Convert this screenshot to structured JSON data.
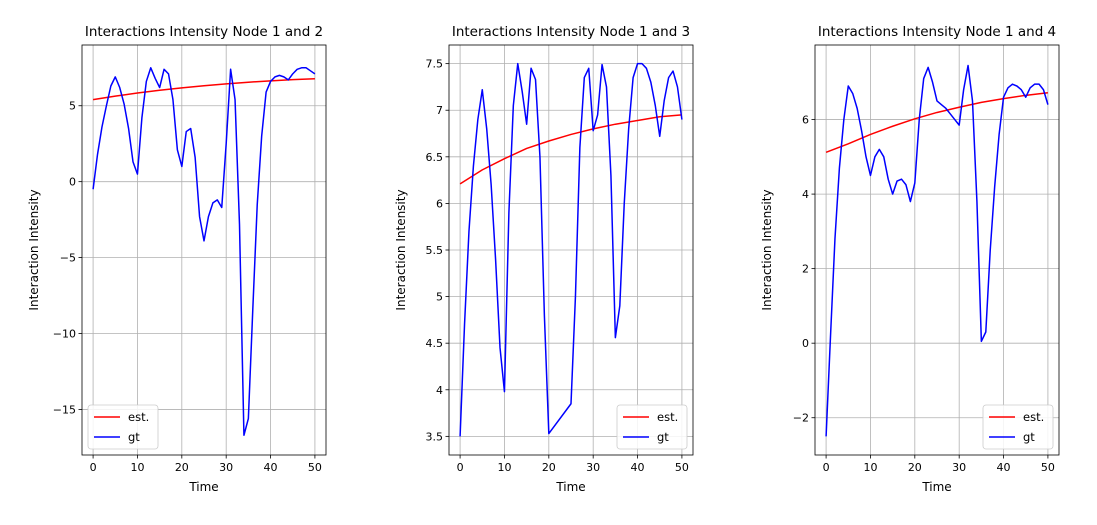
{
  "chart_data": [
    {
      "type": "line",
      "title": "Interactions Intensity Node 1 and 2",
      "xlabel": "Time",
      "ylabel": "Interaction Intensity",
      "xlim": [
        -2.5,
        52.5
      ],
      "ylim": [
        -18,
        9
      ],
      "xticks": [
        0,
        10,
        20,
        30,
        40,
        50
      ],
      "yticks": [
        -15,
        -10,
        -5,
        0,
        5
      ],
      "grid": true,
      "legend": "lower-left",
      "series": [
        {
          "name": "est.",
          "color": "#ff0000",
          "x": [
            0,
            5,
            10,
            15,
            20,
            25,
            30,
            35,
            40,
            45,
            50
          ],
          "y": [
            5.4,
            5.63,
            5.84,
            6.02,
            6.18,
            6.32,
            6.44,
            6.55,
            6.64,
            6.72,
            6.78
          ]
        },
        {
          "name": "gt",
          "color": "#0000ff",
          "x": [
            0,
            1,
            2,
            3,
            4,
            5,
            6,
            7,
            8,
            9,
            10,
            11,
            12,
            13,
            14,
            15,
            16,
            17,
            18,
            19,
            20,
            21,
            22,
            23,
            24,
            25,
            26,
            27,
            28,
            29,
            30,
            31,
            32,
            33,
            34,
            35,
            36,
            37,
            38,
            39,
            40,
            41,
            42,
            43,
            44,
            45,
            46,
            47,
            48,
            49,
            50
          ],
          "y": [
            -0.5,
            1.8,
            3.6,
            5.0,
            6.3,
            6.9,
            6.2,
            5.1,
            3.5,
            1.3,
            0.5,
            4.2,
            6.6,
            7.5,
            6.8,
            6.2,
            7.4,
            7.1,
            5.4,
            2.1,
            1.0,
            3.3,
            3.5,
            1.6,
            -2.3,
            -3.9,
            -2.3,
            -1.4,
            -1.2,
            -1.7,
            2.5,
            7.4,
            5.4,
            -2.8,
            -16.7,
            -15.6,
            -8.4,
            -1.5,
            3.0,
            5.9,
            6.6,
            6.9,
            7.0,
            6.9,
            6.7,
            7.1,
            7.4,
            7.5,
            7.5,
            7.3,
            7.1
          ]
        }
      ]
    },
    {
      "type": "line",
      "title": "Interactions Intensity Node 1 and 3",
      "xlabel": "Time",
      "ylabel": "Interaction Intensity",
      "xlim": [
        -2.5,
        52.5
      ],
      "ylim": [
        3.3,
        7.7
      ],
      "xticks": [
        0,
        10,
        20,
        30,
        40,
        50
      ],
      "yticks": [
        3.5,
        4.0,
        4.5,
        5.0,
        5.5,
        6.0,
        6.5,
        7.0,
        7.5
      ],
      "grid": true,
      "legend": "lower-right",
      "series": [
        {
          "name": "est.",
          "color": "#ff0000",
          "x": [
            0,
            5,
            10,
            15,
            20,
            25,
            30,
            35,
            40,
            45,
            50
          ],
          "y": [
            6.21,
            6.36,
            6.48,
            6.59,
            6.67,
            6.74,
            6.8,
            6.85,
            6.89,
            6.93,
            6.95
          ]
        },
        {
          "name": "gt",
          "color": "#0000ff",
          "x": [
            0,
            1,
            2,
            3,
            4,
            5,
            6,
            7,
            8,
            9,
            10,
            11,
            12,
            13,
            14,
            15,
            16,
            17,
            18,
            19,
            20,
            25,
            26,
            27,
            28,
            29,
            30,
            31,
            32,
            33,
            34,
            35,
            36,
            37,
            38,
            39,
            40,
            41,
            42,
            43,
            44,
            45,
            46,
            47,
            48,
            49,
            50
          ],
          "y": [
            3.5,
            4.7,
            5.7,
            6.4,
            6.9,
            7.22,
            6.8,
            6.2,
            5.4,
            4.45,
            3.98,
            5.9,
            7.05,
            7.5,
            7.2,
            6.85,
            7.45,
            7.33,
            6.5,
            4.8,
            3.53,
            3.85,
            5.0,
            6.6,
            7.35,
            7.45,
            6.78,
            6.95,
            7.49,
            7.25,
            6.3,
            4.56,
            4.9,
            6.0,
            6.8,
            7.35,
            7.5,
            7.5,
            7.45,
            7.3,
            7.05,
            6.72,
            7.1,
            7.35,
            7.42,
            7.25,
            6.9
          ]
        }
      ]
    },
    {
      "type": "line",
      "title": "Interactions Intensity Node 1 and 4",
      "xlabel": "Time",
      "ylabel": "Interaction Intensity",
      "xlim": [
        -2.5,
        52.5
      ],
      "ylim": [
        -3,
        8
      ],
      "xticks": [
        0,
        10,
        20,
        30,
        40,
        50
      ],
      "yticks": [
        -2,
        0,
        2,
        4,
        6
      ],
      "grid": true,
      "legend": "lower-right",
      "series": [
        {
          "name": "est.",
          "color": "#ff0000",
          "x": [
            0,
            5,
            10,
            15,
            20,
            25,
            30,
            35,
            40,
            45,
            50
          ],
          "y": [
            5.12,
            5.35,
            5.6,
            5.82,
            6.02,
            6.19,
            6.33,
            6.46,
            6.56,
            6.65,
            6.72
          ]
        },
        {
          "name": "gt",
          "color": "#0000ff",
          "x": [
            0,
            1,
            2,
            3,
            4,
            5,
            6,
            7,
            8,
            9,
            10,
            11,
            12,
            13,
            14,
            15,
            16,
            17,
            18,
            19,
            20,
            21,
            22,
            23,
            24,
            25,
            26,
            27,
            28,
            29,
            30,
            31,
            32,
            33,
            34,
            35,
            36,
            37,
            38,
            39,
            40,
            41,
            42,
            43,
            44,
            45,
            46,
            47,
            48,
            49,
            50
          ],
          "y": [
            -2.5,
            0.2,
            2.8,
            4.7,
            6.0,
            6.9,
            6.7,
            6.3,
            5.7,
            5.0,
            4.5,
            5.0,
            5.2,
            5.0,
            4.4,
            4.0,
            4.35,
            4.4,
            4.25,
            3.8,
            4.3,
            6.0,
            7.1,
            7.4,
            7.0,
            6.5,
            6.4,
            6.3,
            6.15,
            6.0,
            5.85,
            6.8,
            7.45,
            6.5,
            3.8,
            0.05,
            0.3,
            2.5,
            4.2,
            5.6,
            6.6,
            6.85,
            6.95,
            6.9,
            6.8,
            6.6,
            6.85,
            6.95,
            6.95,
            6.8,
            6.4
          ]
        }
      ]
    }
  ]
}
